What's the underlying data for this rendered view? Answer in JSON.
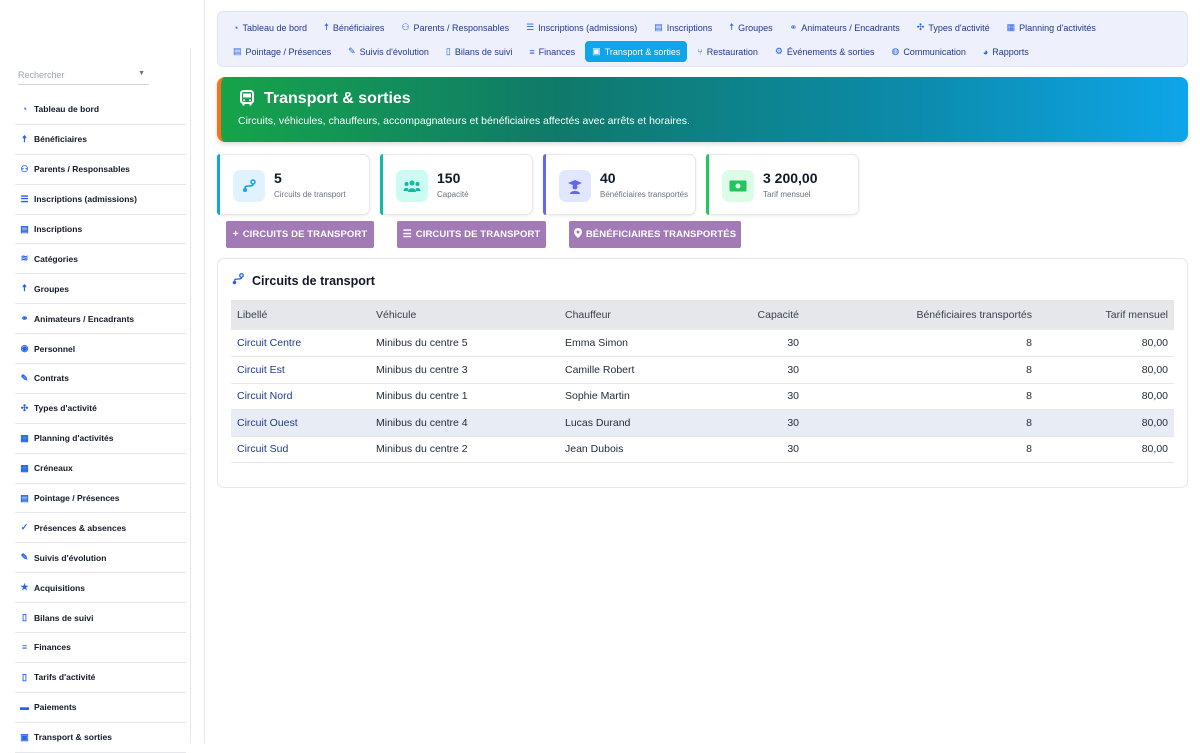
{
  "sidebar": {
    "search_placeholder": "Rechercher",
    "items": [
      {
        "label": "Tableau de bord",
        "icon": "gauge-icon"
      },
      {
        "label": "Bénéficiaires",
        "icon": "child-icon"
      },
      {
        "label": "Parents / Responsables",
        "icon": "users-icon"
      },
      {
        "label": "Inscriptions (admissions)",
        "icon": "list-icon"
      },
      {
        "label": "Inscriptions",
        "icon": "clipboard-icon"
      },
      {
        "label": "Catégories",
        "icon": "layers-icon"
      },
      {
        "label": "Groupes",
        "icon": "child-icon"
      },
      {
        "label": "Animateurs / Encadrants",
        "icon": "handshake-icon"
      },
      {
        "label": "Personnel",
        "icon": "user-icon"
      },
      {
        "label": "Contrats",
        "icon": "edit-icon"
      },
      {
        "label": "Types d'activité",
        "icon": "puzzle-icon"
      },
      {
        "label": "Planning d'activités",
        "icon": "calendar-icon"
      },
      {
        "label": "Créneaux",
        "icon": "calendar-icon"
      },
      {
        "label": "Pointage / Présences",
        "icon": "clipboard-icon"
      },
      {
        "label": "Présences & absences",
        "icon": "user-check-icon"
      },
      {
        "label": "Suivis d'évolution",
        "icon": "pen-icon"
      },
      {
        "label": "Acquisitions",
        "icon": "star-icon"
      },
      {
        "label": "Bilans de suivi",
        "icon": "file-icon"
      },
      {
        "label": "Finances",
        "icon": "coins-icon"
      },
      {
        "label": "Tarifs d'activité",
        "icon": "receipt-icon"
      },
      {
        "label": "Paiements",
        "icon": "money-icon"
      },
      {
        "label": "Transport & sorties",
        "icon": "bus-icon"
      }
    ]
  },
  "topnav": {
    "row1": [
      {
        "label": "Tableau de bord",
        "icon": "gauge-icon"
      },
      {
        "label": "Bénéficiaires",
        "icon": "child-icon"
      },
      {
        "label": "Parents / Responsables",
        "icon": "users-icon"
      },
      {
        "label": "Inscriptions (admissions)",
        "icon": "list-icon"
      },
      {
        "label": "Inscriptions",
        "icon": "clipboard-icon"
      },
      {
        "label": "Groupes",
        "icon": "child-icon"
      },
      {
        "label": "Animateurs / Encadrants",
        "icon": "handshake-icon"
      },
      {
        "label": "Types d'activité",
        "icon": "puzzle-icon"
      },
      {
        "label": "Planning d'activités",
        "icon": "calendar-icon"
      }
    ],
    "row2": [
      {
        "label": "Pointage / Présences",
        "icon": "clipboard-icon"
      },
      {
        "label": "Suivis d'évolution",
        "icon": "pen-icon"
      },
      {
        "label": "Bilans de suivi",
        "icon": "file-icon"
      },
      {
        "label": "Finances",
        "icon": "coins-icon"
      },
      {
        "label": "Transport & sorties",
        "icon": "bus-icon",
        "active": true
      },
      {
        "label": "Restauration",
        "icon": "utensils-icon"
      },
      {
        "label": "Événements & sorties",
        "icon": "gear-icon"
      },
      {
        "label": "Communication",
        "icon": "comments-icon"
      },
      {
        "label": "Rapports",
        "icon": "pie-icon"
      }
    ]
  },
  "hero": {
    "title": "Transport & sorties",
    "subtitle": "Circuits, véhicules, chauffeurs, accompagnateurs et bénéficiaires affectés avec arrêts et horaires.",
    "icon": "bus-icon"
  },
  "stats": [
    {
      "value": "5",
      "label": "Circuits de transport",
      "icon": "route-icon",
      "color": "#0ea5e9",
      "bg": "#e0f2fe"
    },
    {
      "value": "150",
      "label": "Capacité",
      "icon": "users-icon",
      "color": "#14b8a6",
      "bg": "#ccfbf1"
    },
    {
      "value": "40",
      "label": "Bénéficiaires transportés",
      "icon": "graduate-icon",
      "color": "#6366f1",
      "bg": "#e0e7ff"
    },
    {
      "value": "3 200,00",
      "label": "Tarif mensuel",
      "icon": "money-icon",
      "color": "#22c55e",
      "bg": "#dcfce7"
    }
  ],
  "actions": {
    "add_label": "CIRCUITS DE TRANSPORT",
    "list_label": "CIRCUITS DE TRANSPORT",
    "beneficiaries_label": "BÉNÉFICIAIRES TRANSPORTÉS"
  },
  "table": {
    "title": "Circuits de transport",
    "headers": [
      "Libellé",
      "Véhicule",
      "Chauffeur",
      "Capacité",
      "Bénéficiaires transportés",
      "Tarif mensuel"
    ],
    "rows": [
      [
        "Circuit Centre",
        "Minibus du centre 5",
        "Emma Simon",
        "30",
        "8",
        "80,00"
      ],
      [
        "Circuit Est",
        "Minibus du centre 3",
        "Camille Robert",
        "30",
        "8",
        "80,00"
      ],
      [
        "Circuit Nord",
        "Minibus du centre 1",
        "Sophie Martin",
        "30",
        "8",
        "80,00"
      ],
      [
        "Circuit Ouest",
        "Minibus du centre 4",
        "Lucas Durand",
        "30",
        "8",
        "80,00"
      ],
      [
        "Circuit Sud",
        "Minibus du centre 2",
        "Jean Dubois",
        "30",
        "8",
        "80,00"
      ]
    ]
  }
}
